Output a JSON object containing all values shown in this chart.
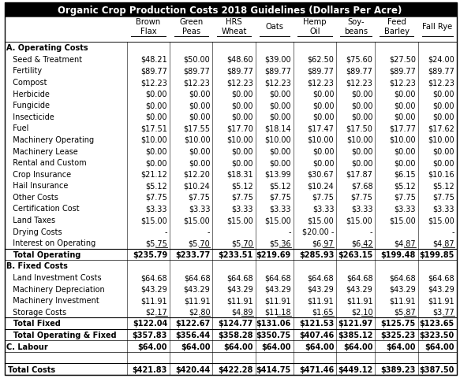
{
  "title": "Organic Crop Production Costs 2018 Guidelines (Dollars Per Acre)",
  "col_headers": [
    "",
    "Brown\nFlax",
    "Green\nPeas",
    "HRS\nWheat",
    "Oats",
    "Hemp\nOil",
    "Soy-\nbeans",
    "Feed\nBarley",
    "Fall Rye"
  ],
  "rows": [
    [
      "A. Operating Costs",
      "",
      "",
      "",
      "",
      "",
      "",
      "",
      ""
    ],
    [
      "  Seed & Treatment",
      "$48.21",
      "$50.00",
      "$48.60",
      "$39.00",
      "$62.50",
      "$75.60",
      "$27.50",
      "$24.00"
    ],
    [
      "  Fertility",
      "$89.77",
      "$89.77",
      "$89.77",
      "$89.77",
      "$89.77",
      "$89.77",
      "$89.77",
      "$89.77"
    ],
    [
      "  Compost",
      "$12.23",
      "$12.23",
      "$12.23",
      "$12.23",
      "$12.23",
      "$12.23",
      "$12.23",
      "$12.23"
    ],
    [
      "  Herbicide",
      "$0.00",
      "$0.00",
      "$0.00",
      "$0.00",
      "$0.00",
      "$0.00",
      "$0.00",
      "$0.00"
    ],
    [
      "  Fungicide",
      "$0.00",
      "$0.00",
      "$0.00",
      "$0.00",
      "$0.00",
      "$0.00",
      "$0.00",
      "$0.00"
    ],
    [
      "  Insecticide",
      "$0.00",
      "$0.00",
      "$0.00",
      "$0.00",
      "$0.00",
      "$0.00",
      "$0.00",
      "$0.00"
    ],
    [
      "  Fuel",
      "$17.51",
      "$17.55",
      "$17.70",
      "$18.14",
      "$17.47",
      "$17.50",
      "$17.77",
      "$17.62"
    ],
    [
      "  Machinery Operating",
      "$10.00",
      "$10.00",
      "$10.00",
      "$10.00",
      "$10.00",
      "$10.00",
      "$10.00",
      "$10.00"
    ],
    [
      "  Machinery Lease",
      "$0.00",
      "$0.00",
      "$0.00",
      "$0.00",
      "$0.00",
      "$0.00",
      "$0.00",
      "$0.00"
    ],
    [
      "  Rental and Custom",
      "$0.00",
      "$0.00",
      "$0.00",
      "$0.00",
      "$0.00",
      "$0.00",
      "$0.00",
      "$0.00"
    ],
    [
      "  Crop Insurance",
      "$21.12",
      "$12.20",
      "$18.31",
      "$13.99",
      "$30.67",
      "$17.87",
      "$6.15",
      "$10.16"
    ],
    [
      "  Hail Insurance",
      "$5.12",
      "$10.24",
      "$5.12",
      "$5.12",
      "$10.24",
      "$7.68",
      "$5.12",
      "$5.12"
    ],
    [
      "  Other Costs",
      "$7.75",
      "$7.75",
      "$7.75",
      "$7.75",
      "$7.75",
      "$7.75",
      "$7.75",
      "$7.75"
    ],
    [
      "  Certification Cost",
      "$3.33",
      "$3.33",
      "$3.33",
      "$3.33",
      "$3.33",
      "$3.33",
      "$3.33",
      "$3.33"
    ],
    [
      "  Land Taxes",
      "$15.00",
      "$15.00",
      "$15.00",
      "$15.00",
      "$15.00",
      "$15.00",
      "$15.00",
      "$15.00"
    ],
    [
      "  Drying Costs",
      "-",
      "-",
      "",
      "-",
      "$20.00 -",
      "-",
      "",
      "-"
    ],
    [
      "  Interest on Operating",
      "$5.75",
      "$5.70",
      "$5.70",
      "$5.36",
      "$6.97",
      "$6.42",
      "$4.87",
      "$4.87"
    ],
    [
      "  Total Operating",
      "$235.79",
      "$233.77",
      "$233.51",
      "$219.69",
      "$285.93",
      "$263.15",
      "$199.48",
      "$199.85"
    ],
    [
      "B. Fixed Costs",
      "",
      "",
      "",
      "",
      "",
      "",
      "",
      ""
    ],
    [
      "  Land Investment Costs",
      "$64.68",
      "$64.68",
      "$64.68",
      "$64.68",
      "$64.68",
      "$64.68",
      "$64.68",
      "$64.68"
    ],
    [
      "  Machinery Depreciation",
      "$43.29",
      "$43.29",
      "$43.29",
      "$43.29",
      "$43.29",
      "$43.29",
      "$43.29",
      "$43.29"
    ],
    [
      "  Machinery Investment",
      "$11.91",
      "$11.91",
      "$11.91",
      "$11.91",
      "$11.91",
      "$11.91",
      "$11.91",
      "$11.91"
    ],
    [
      "  Storage Costs",
      "$2.17",
      "$2.80",
      "$4.89",
      "$11.18",
      "$1.65",
      "$2.10",
      "$5.87",
      "$3.77"
    ],
    [
      "  Total Fixed",
      "$122.04",
      "$122.67",
      "$124.77",
      "$131.06",
      "$121.53",
      "$121.97",
      "$125.75",
      "$123.65"
    ],
    [
      "  Total Operating & Fixed",
      "$357.83",
      "$356.44",
      "$358.28",
      "$350.75",
      "$407.46",
      "$385.12",
      "$325.23",
      "$323.50"
    ],
    [
      "C. Labour",
      "$64.00",
      "$64.00",
      "$64.00",
      "$64.00",
      "$64.00",
      "$64.00",
      "$64.00",
      "$64.00"
    ],
    [
      "",
      "",
      "",
      "",
      "",
      "",
      "",
      "",
      ""
    ],
    [
      "Total Costs",
      "$421.83",
      "$420.44",
      "$422.28",
      "$414.75",
      "$471.46",
      "$449.12",
      "$389.23",
      "$387.50"
    ]
  ],
  "row_styles": {
    "0": {
      "bold": true,
      "section": true
    },
    "18": {
      "bold": true,
      "top_line": true
    },
    "19": {
      "bold": true,
      "section": true
    },
    "24": {
      "bold": true,
      "top_line": true
    },
    "25": {
      "bold": true,
      "top_line": true
    },
    "26": {
      "bold": true,
      "section": true
    },
    "28": {
      "bold": true,
      "top_line": true
    }
  },
  "underline_rows": [
    17,
    23
  ],
  "drying_row": 16,
  "header_bg": "#000000",
  "header_fg": "#ffffff",
  "title_fontsize": 8.5,
  "header_fontsize": 7.2,
  "cell_fontsize": 7.0
}
